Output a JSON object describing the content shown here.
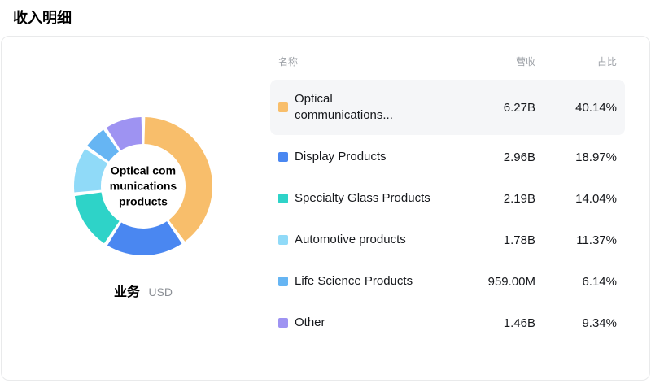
{
  "page": {
    "title": "收入明细"
  },
  "chart": {
    "center_label": "Optical communications products",
    "footer_label": "业务",
    "footer_unit": "USD"
  },
  "table": {
    "headers": {
      "name": "名称",
      "revenue": "营收",
      "share": "占比"
    }
  },
  "chart_data": {
    "type": "pie",
    "title": "收入明细",
    "donut": true,
    "unit": "USD",
    "legend_position": "right-table",
    "categories": [
      "Optical communications products",
      "Display Products",
      "Specialty Glass Products",
      "Automotive products",
      "Life Science Products",
      "Other"
    ],
    "display_names": [
      "Optical communications...",
      "Display Products",
      "Specialty Glass Products",
      "Automotive products",
      "Life Science Products",
      "Other"
    ],
    "revenues": [
      "6.27B",
      "2.96B",
      "2.19B",
      "1.78B",
      "959.00M",
      "1.46B"
    ],
    "shares": [
      "40.14%",
      "18.97%",
      "14.04%",
      "11.37%",
      "6.14%",
      "9.34%"
    ],
    "values": [
      40.14,
      18.97,
      14.04,
      11.37,
      6.14,
      9.34
    ],
    "colors": [
      "#F8BE6B",
      "#4A87F1",
      "#2ED3C8",
      "#90DAF8",
      "#66B5F3",
      "#9E93F2"
    ],
    "highlighted_index": 0
  }
}
